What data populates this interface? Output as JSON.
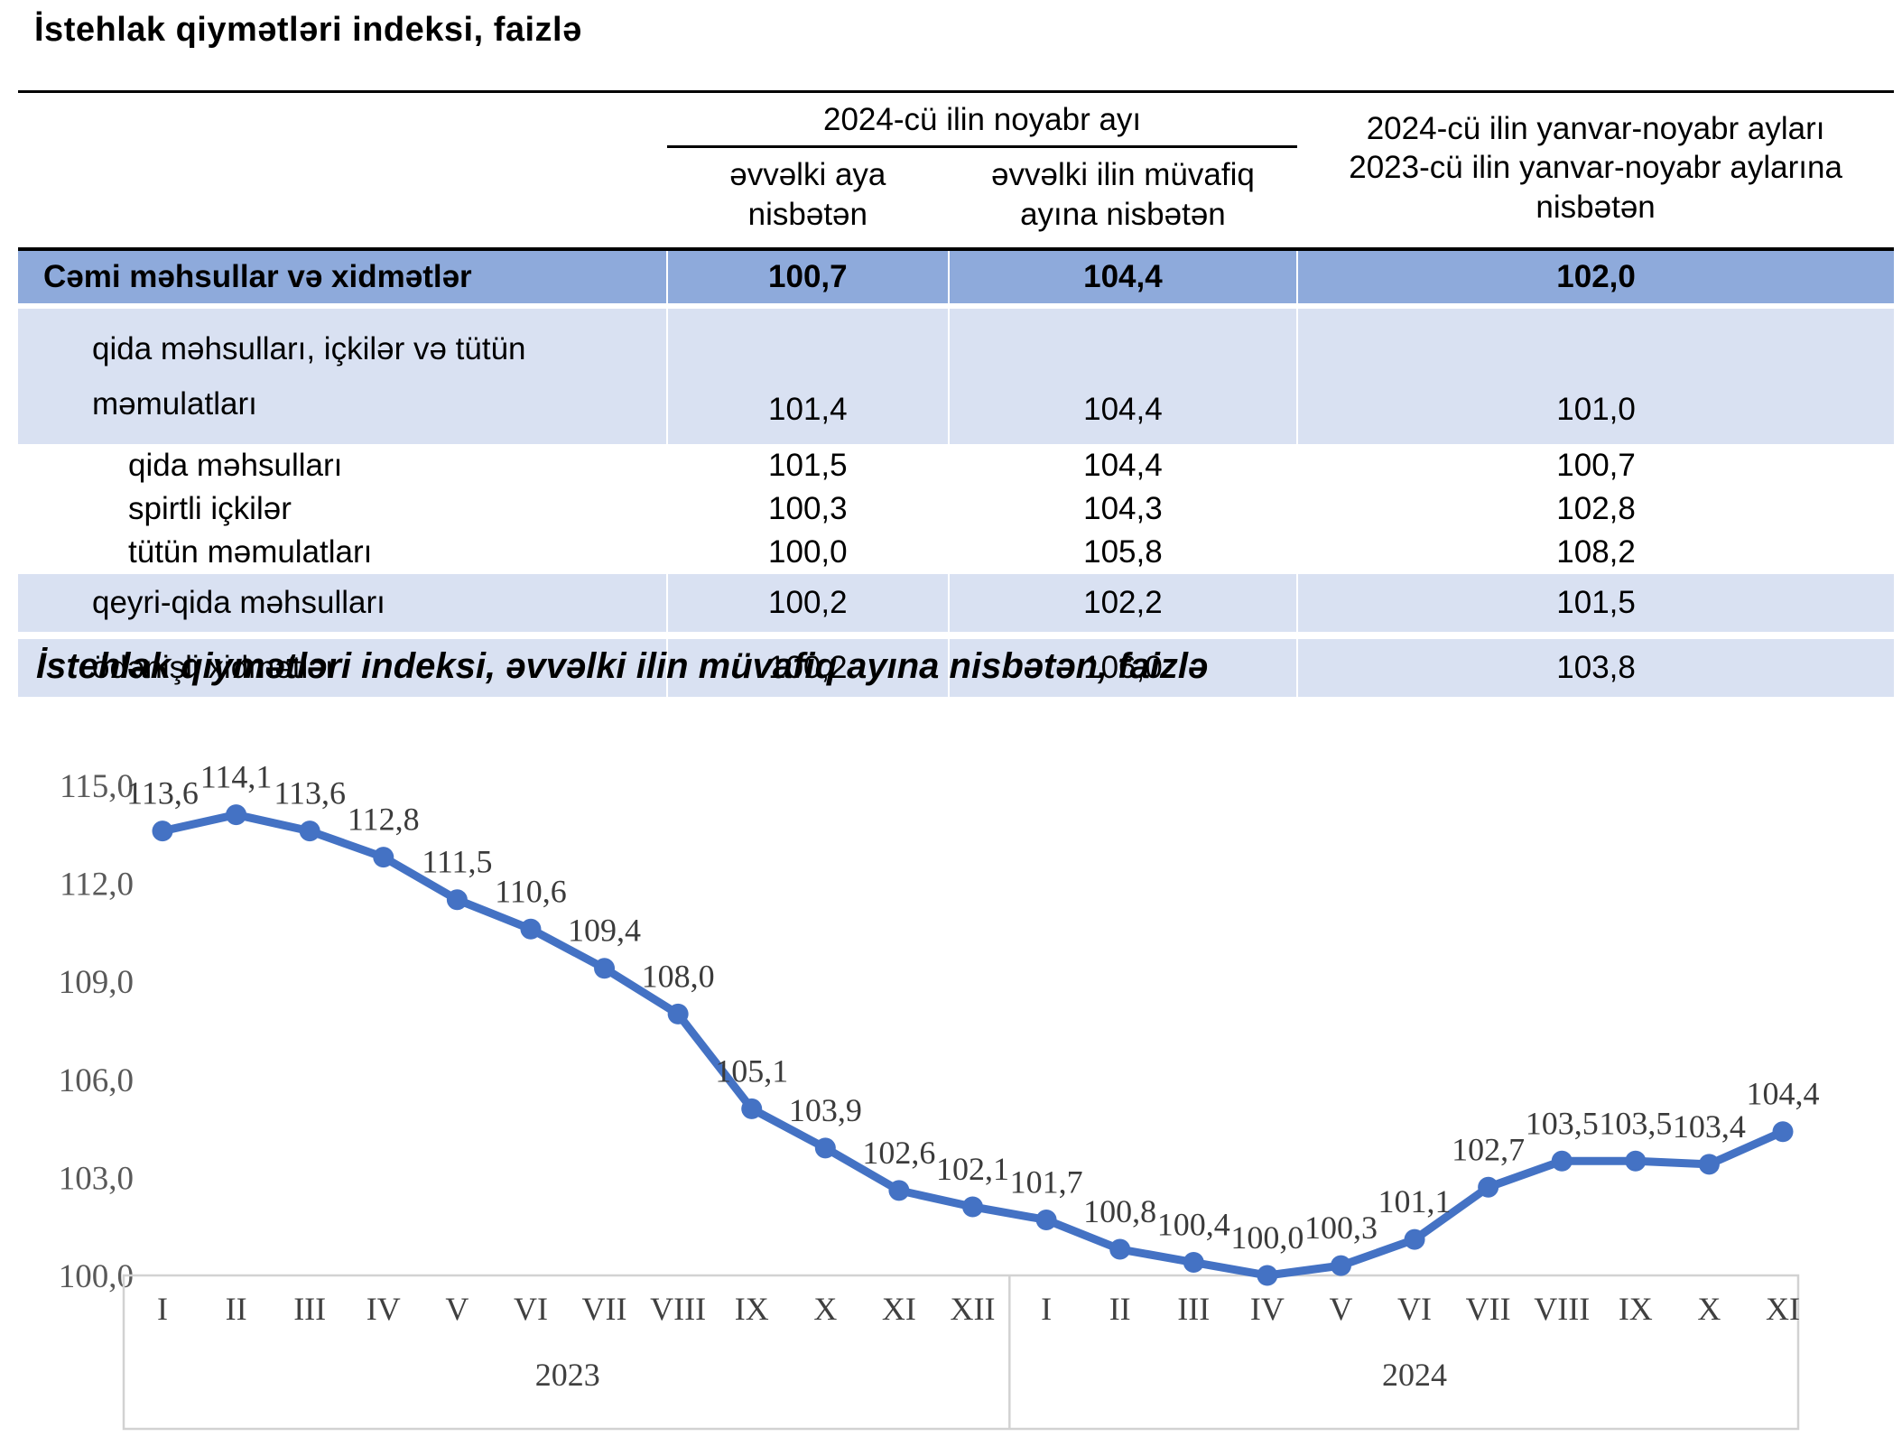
{
  "colors": {
    "total_row_blue": "#8EAADB",
    "shaded_row_blue": "#D9E1F2",
    "line_blue": "#4472C4"
  },
  "table": {
    "title": "İstehlak qiymətləri indeksi, faizlə",
    "col_group_header": "2024-cü ilin noyabr ayı",
    "col2_header": "əvvəlki aya nisbətən",
    "col3_header": "əvvəlki ilin müvafiq ayına nisbətən",
    "col4_header": "2024-cü ilin yanvar-noyabr ayları 2023-cü ilin yanvar-noyabr aylarına nisbətən",
    "rows": [
      {
        "label": "Cəmi məhsullar və xidmətlər",
        "prev_month": "100,7",
        "prev_year_month": "104,4",
        "jan_nov": "102,0"
      },
      {
        "label": "qida məhsulları, içkilər və tütün məmulatları",
        "prev_month": "101,4",
        "prev_year_month": "104,4",
        "jan_nov": "101,0"
      },
      {
        "label": "qida məhsulları",
        "prev_month": "101,5",
        "prev_year_month": "104,4",
        "jan_nov": "100,7"
      },
      {
        "label": "spirtli içkilər",
        "prev_month": "100,3",
        "prev_year_month": "104,3",
        "jan_nov": "102,8"
      },
      {
        "label": "tütün məmulatları",
        "prev_month": "100,0",
        "prev_year_month": "105,8",
        "jan_nov": "108,2"
      },
      {
        "label": "qeyri-qida məhsulları",
        "prev_month": "100,2",
        "prev_year_month": "102,2",
        "jan_nov": "101,5"
      },
      {
        "label": "ödənişli xidmətlər",
        "prev_month": "100,2",
        "prev_year_month": "106,0",
        "jan_nov": "103,8"
      }
    ]
  },
  "chart": {
    "title": "İstehlak qiymətləri indeksi, əvvəlki ilin müvafiq ayına nisbətən, faizlə"
  },
  "chart_data": {
    "type": "line",
    "title": "İstehlak qiymətləri indeksi, əvvəlki ilin müvafiq ayına nisbətən, faizlə",
    "categories": [
      "I",
      "II",
      "III",
      "IV",
      "V",
      "VI",
      "VII",
      "VIII",
      "IX",
      "X",
      "XI",
      "XII",
      "I",
      "II",
      "III",
      "IV",
      "V",
      "VI",
      "VII",
      "VIII",
      "IX",
      "X",
      "XI"
    ],
    "year_groups": [
      {
        "label": "2023",
        "start": 0,
        "end": 11
      },
      {
        "label": "2024",
        "start": 12,
        "end": 22
      }
    ],
    "values": [
      113.6,
      114.1,
      113.6,
      112.8,
      111.5,
      110.6,
      109.4,
      108.0,
      105.1,
      103.9,
      102.6,
      102.1,
      101.7,
      100.8,
      100.4,
      100.0,
      100.3,
      101.1,
      102.7,
      103.5,
      103.5,
      103.4,
      104.4
    ],
    "point_labels": [
      "113,6",
      "114,1",
      "113,6",
      "112,8",
      "111,5",
      "110,6",
      "109,4",
      "108,0",
      "105,1",
      "103,9",
      "102,6",
      "102,1",
      "101,7",
      "100,8",
      "100,4",
      "100,0",
      "100,3",
      "101,1",
      "102,7",
      "103,5",
      "103,5",
      "103,4",
      "104,4"
    ],
    "ylim": [
      100,
      115
    ],
    "ytick_values": [
      100,
      103,
      106,
      109,
      112,
      115
    ],
    "ytick_labels": [
      "100,0",
      "103,0",
      "106,0",
      "109,0",
      "112,0",
      "115,0"
    ],
    "xlabel": "",
    "ylabel": "",
    "grid": false,
    "legend_position": "none",
    "line_color": "#4472C4"
  }
}
